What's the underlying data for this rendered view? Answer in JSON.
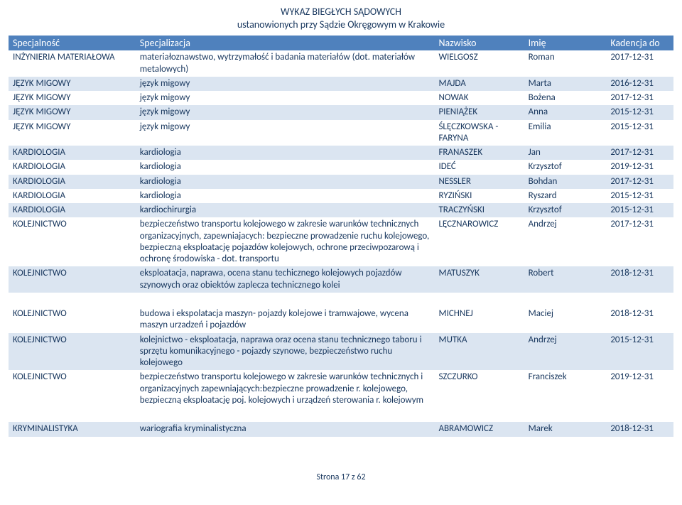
{
  "title_line1": "WYKAZ BIEGŁYCH SĄDOWYCH",
  "title_line2": "ustanowionych przy Sądzie Okręgowym w Krakowie",
  "columns": {
    "spec": "Specjalność",
    "specj": "Specjalizacja",
    "nazw": "Nazwisko",
    "imie": "Imię",
    "kad": "Kadencja do"
  },
  "footer": "Strona 17 z 62",
  "rows": [
    {
      "stripe": false,
      "spec": "INŻYNIERIA MATERIAŁOWA",
      "specj": "materiałoznawstwo, wytrzymałość i badania materiałów (dot. materiałów metalowych)",
      "nazw": "WIELGOSZ",
      "imie": "Roman",
      "kad": "2017-12-31"
    },
    {
      "stripe": true,
      "spec": "JĘZYK MIGOWY",
      "specj": "język migowy",
      "nazw": "MAJDA",
      "imie": "Marta",
      "kad": "2016-12-31"
    },
    {
      "stripe": false,
      "spec": "JĘZYK MIGOWY",
      "specj": "język migowy",
      "nazw": "NOWAK",
      "imie": "Bożena",
      "kad": "2017-12-31"
    },
    {
      "stripe": true,
      "spec": "JĘZYK MIGOWY",
      "specj": "język migowy",
      "nazw": "PIENIĄŻEK",
      "imie": "Anna",
      "kad": "2015-12-31"
    },
    {
      "stripe": false,
      "spec": "JĘZYK MIGOWY",
      "specj": "język migowy",
      "nazw": "ŚLĘCZKOWSKA - FARYNA",
      "imie": "Emilia",
      "kad": "2015-12-31"
    },
    {
      "stripe": true,
      "spec": "KARDIOLOGIA",
      "specj": "kardiologia",
      "nazw": "FRANASZEK",
      "imie": "Jan",
      "kad": "2017-12-31"
    },
    {
      "stripe": false,
      "spec": "KARDIOLOGIA",
      "specj": "kardiologia",
      "nazw": "IDEĆ",
      "imie": "Krzysztof",
      "kad": "2019-12-31"
    },
    {
      "stripe": true,
      "spec": "KARDIOLOGIA",
      "specj": "kardiologia",
      "nazw": "NESSLER",
      "imie": "Bohdan",
      "kad": "2017-12-31"
    },
    {
      "stripe": false,
      "spec": "KARDIOLOGIA",
      "specj": "kardiologia",
      "nazw": "RYZIŃSKI",
      "imie": "Ryszard",
      "kad": "2015-12-31"
    },
    {
      "stripe": true,
      "spec": "KARDIOLOGIA",
      "specj": "kardiochirurgia",
      "nazw": "TRACZYŃSKI",
      "imie": "Krzysztof",
      "kad": "2015-12-31"
    },
    {
      "stripe": false,
      "spec": "KOLEJNICTWO",
      "specj": "bezpieczeństwo transportu kolejowego w zakresie warunków technicznych organizacyjnych, zapewniajacych: bezpieczne prowadzenie ruchu kolejowego, bezpieczną eksploatację pojazdów kolejowych, ochrone przeciwpozarową i ochronę środowiska - dot. transportu",
      "nazw": "LĘCZNAROWICZ",
      "imie": "Andrzej",
      "kad": "2017-12-31"
    },
    {
      "stripe": true,
      "spec": "KOLEJNICTWO",
      "specj": "eksploatacja, naprawa, ocena stanu techicznego kolejowych pojazdów szynowych oraz obiektów zaplecza technicznego kolei",
      "nazw": "MATUSZYK",
      "imie": "Robert",
      "kad": "2018-12-31"
    },
    {
      "spacer": true
    },
    {
      "stripe": false,
      "spec": "KOLEJNICTWO",
      "specj": "budowa i ekspolatacja maszyn- pojazdy kolejowe i tramwajowe, wycena maszyn urzadzeń i pojazdów",
      "nazw": "MICHNEJ",
      "imie": "Maciej",
      "kad": "2018-12-31"
    },
    {
      "stripe": true,
      "spec": "KOLEJNICTWO",
      "specj": "kolejnictwo - eksploatacja, naprawa oraz ocena stanu technicznego taboru i sprzętu komunikacyjnego - pojazdy szynowe, bezpieczeństwo ruchu kolejowego",
      "nazw": "MUTKA",
      "imie": "Andrzej",
      "kad": "2015-12-31"
    },
    {
      "stripe": false,
      "spec": "KOLEJNICTWO",
      "specj": "bezpieczeństwo transportu kolejowego w zakresie warunków technicznych i organizacyjnych zapewniających:bezpieczne prowadzenie r. kolejowego, bezpieczną eksploatację poj. kolejowych i urządzeń sterowania r. kolejowym",
      "nazw": "SZCZURKO",
      "imie": "Franciszek",
      "kad": "2019-12-31"
    },
    {
      "spacer": true
    },
    {
      "stripe": true,
      "spec": "KRYMINALISTYKA",
      "specj": "wariografia kryminalistyczna",
      "nazw": "ABRAMOWICZ",
      "imie": "Marek",
      "kad": "2018-12-31"
    }
  ]
}
